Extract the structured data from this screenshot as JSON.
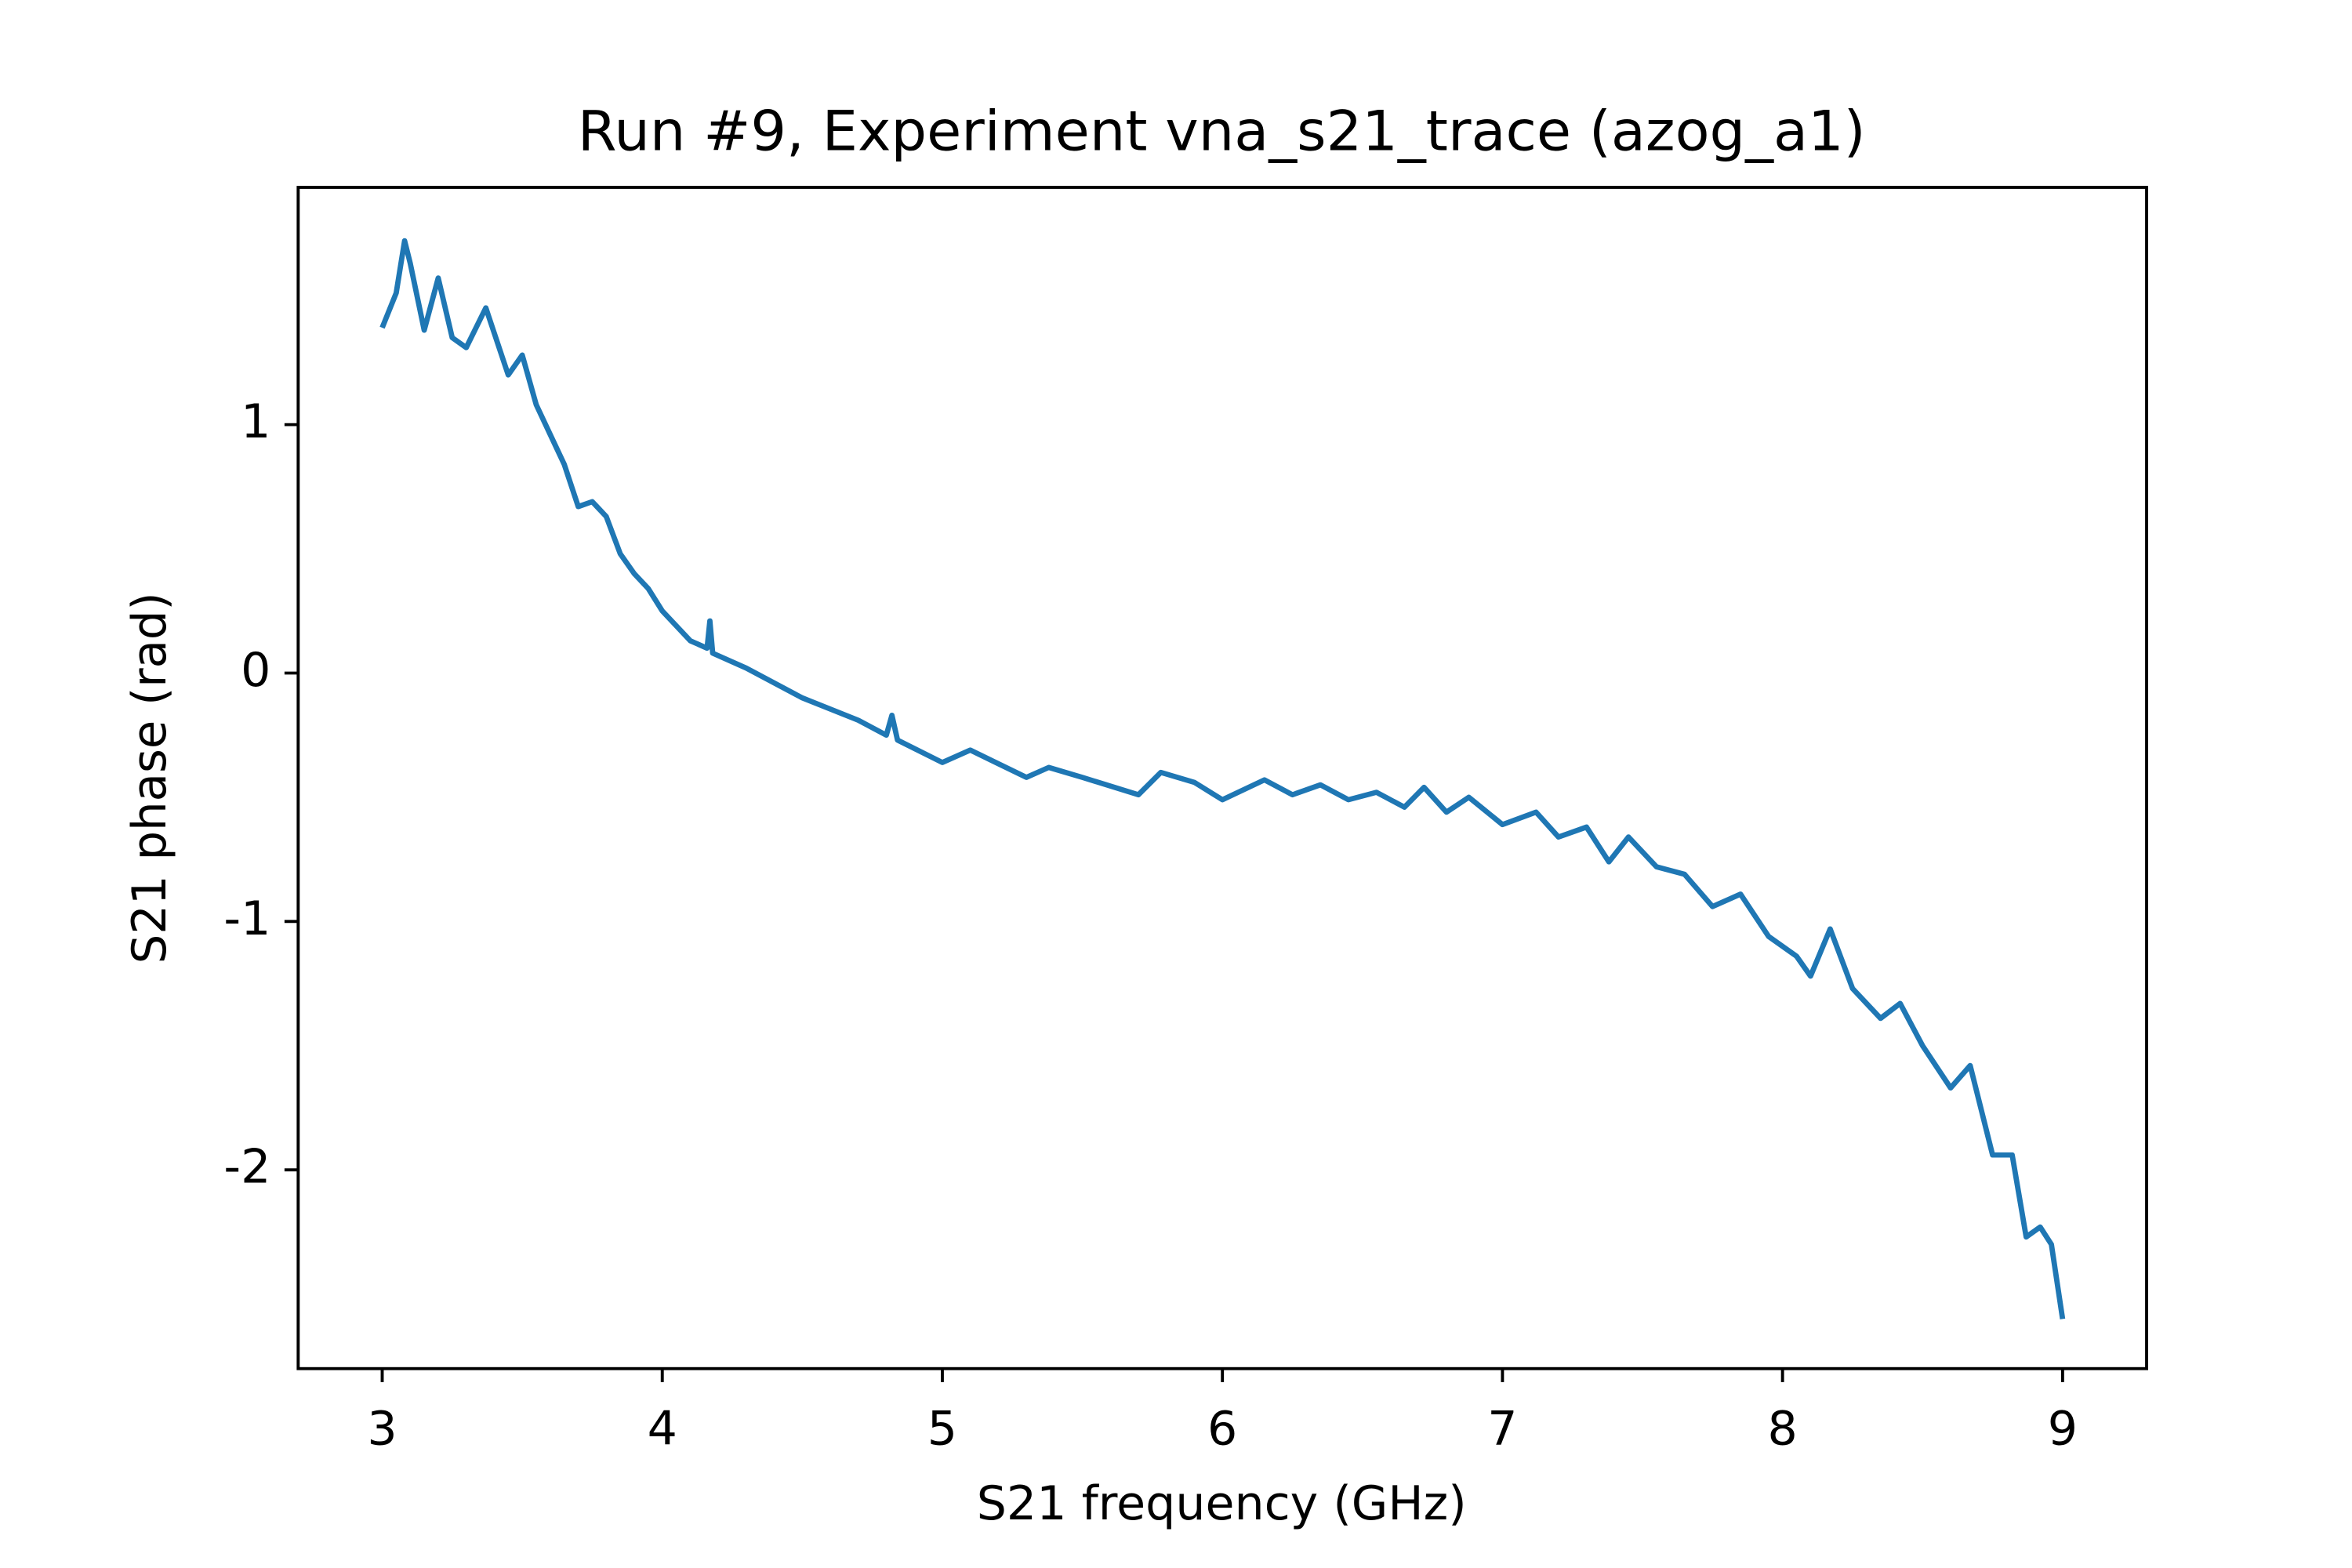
{
  "chart_data": {
    "type": "line",
    "title": "Run #9, Experiment vna_s21_trace (azog_a1)",
    "x_label": "S21 frequency (GHz)",
    "y_label": "S21 phase (rad)",
    "xlim": [
      2.7,
      9.3
    ],
    "xticks": [
      3,
      4,
      5,
      6,
      7,
      8,
      9
    ],
    "ylim": [
      -2.8,
      1.955
    ],
    "yticks": [
      -2,
      -1,
      0,
      1
    ],
    "grid": false,
    "series": [
      {
        "color": "#1f77b4",
        "x": [
          3.0,
          3.05,
          3.08,
          3.1,
          3.15,
          3.2,
          3.25,
          3.3,
          3.37,
          3.45,
          3.5,
          3.55,
          3.6,
          3.65,
          3.7,
          3.75,
          3.8,
          3.85,
          3.9,
          3.95,
          4.0,
          4.1,
          4.16,
          4.17,
          4.18,
          4.3,
          4.5,
          4.7,
          4.8,
          4.82,
          4.84,
          5.0,
          5.1,
          5.3,
          5.38,
          5.5,
          5.7,
          5.78,
          5.9,
          6.0,
          6.15,
          6.25,
          6.35,
          6.45,
          6.55,
          6.65,
          6.72,
          6.8,
          6.88,
          7.0,
          7.12,
          7.2,
          7.3,
          7.38,
          7.45,
          7.55,
          7.65,
          7.75,
          7.85,
          7.95,
          8.05,
          8.1,
          8.17,
          8.25,
          8.35,
          8.42,
          8.5,
          8.6,
          8.67,
          8.75,
          8.82,
          8.87,
          8.92,
          8.96,
          9.0
        ],
        "values": [
          1.39,
          1.53,
          1.74,
          1.65,
          1.38,
          1.59,
          1.35,
          1.31,
          1.47,
          1.2,
          1.28,
          1.08,
          0.96,
          0.84,
          0.67,
          0.69,
          0.63,
          0.48,
          0.4,
          0.34,
          0.25,
          0.13,
          0.1,
          0.21,
          0.08,
          0.02,
          -0.1,
          -0.19,
          -0.25,
          -0.17,
          -0.27,
          -0.36,
          -0.31,
          -0.42,
          -0.38,
          -0.42,
          -0.49,
          -0.4,
          -0.44,
          -0.51,
          -0.43,
          -0.49,
          -0.45,
          -0.51,
          -0.48,
          -0.54,
          -0.46,
          -0.56,
          -0.5,
          -0.61,
          -0.56,
          -0.66,
          -0.62,
          -0.76,
          -0.66,
          -0.78,
          -0.81,
          -0.94,
          -0.89,
          -1.06,
          -1.14,
          -1.22,
          -1.03,
          -1.27,
          -1.39,
          -1.33,
          -1.5,
          -1.67,
          -1.58,
          -1.94,
          -1.94,
          -2.27,
          -2.23,
          -2.3,
          -2.6
        ]
      }
    ]
  }
}
